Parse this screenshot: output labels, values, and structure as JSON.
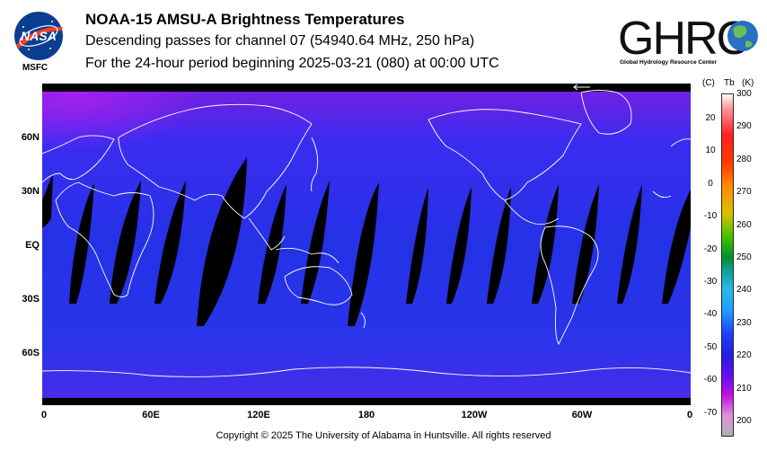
{
  "header": {
    "title": "NOAA-15 AMSU-A Brightness Temperatures",
    "subtitle": "Descending passes for channel 07 (54940.64 MHz, 250 hPa)",
    "period": "For the 24-hour period beginning 2025-03-21 (080) at 00:00 UTC"
  },
  "logos": {
    "nasa_text": "NASA",
    "msfc_text": "MSFC",
    "ghrc_text": "GHRC",
    "ghrc_subtitle": "Global Hydrology Resource Center"
  },
  "map": {
    "lat_labels": [
      "60N",
      "30N",
      "EQ",
      "30S",
      "60S"
    ],
    "lon_labels": [
      "0",
      "60E",
      "120E",
      "180",
      "120W",
      "60W",
      "0"
    ],
    "background_color": "#2a2ee8",
    "gap_color": "#000000",
    "coast_color": "#ffffff"
  },
  "colorbar": {
    "header_c": "(C)",
    "header_tb": "Tb",
    "header_k": "(K)",
    "celsius_ticks": [
      "20",
      "10",
      "0",
      "-10",
      "-20",
      "-30",
      "-40",
      "-50",
      "-60",
      "-70"
    ],
    "kelvin_ticks": [
      "300",
      "290",
      "280",
      "270",
      "260",
      "250",
      "240",
      "230",
      "220",
      "210",
      "200"
    ]
  },
  "footer": {
    "copyright": "Copyright © 2025 The University of Alabama in Huntsville.  All rights reserved"
  }
}
